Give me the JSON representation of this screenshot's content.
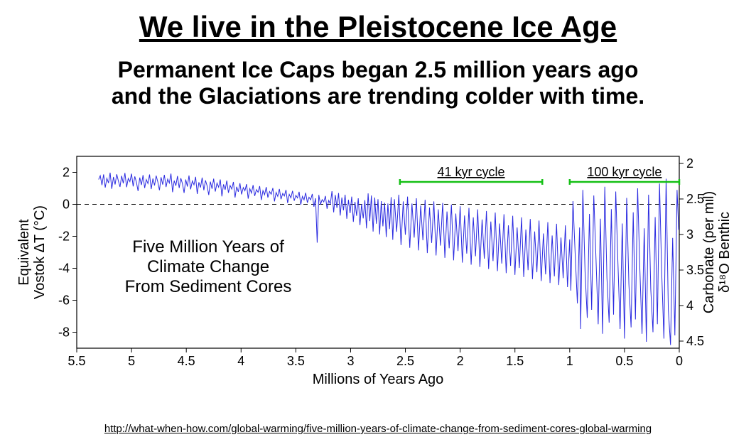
{
  "title": {
    "text": "We live in the Pleistocene Ice Age",
    "fontsize": 42,
    "color": "#000000",
    "underline": true,
    "weight": "bold"
  },
  "subtitle": {
    "line1": "Permanent Ice Caps began 2.5 million years ago",
    "line2": "and the Glaciations are trending colder with time.",
    "fontsize": 32,
    "color": "#000000",
    "weight": "bold"
  },
  "chart": {
    "type": "line",
    "line_color": "#2a2ae0",
    "line_width": 1.0,
    "background_color": "#ffffff",
    "axis_color": "#000000",
    "zero_line": {
      "style": "dashed",
      "color": "#000000",
      "y": 0
    },
    "x": {
      "label": "Millions of Years Ago",
      "label_fontsize": 20,
      "min": 0,
      "max": 5.5,
      "reversed": true,
      "ticks": [
        5.5,
        5,
        4.5,
        4,
        3.5,
        3,
        2.5,
        2,
        1.5,
        1,
        0.5,
        0
      ],
      "tick_labels": [
        "5.5",
        "5",
        "4.5",
        "4",
        "3.5",
        "3",
        "2.5",
        "2",
        "1.5",
        "1",
        "0.5",
        "0"
      ],
      "tick_fontsize": 18
    },
    "y_left": {
      "label_line1": "Equivalent",
      "label_line2": "Vostok ΔT (°C)",
      "label_fontsize": 20,
      "min": -9,
      "max": 3,
      "ticks": [
        -8,
        -6,
        -4,
        -2,
        0,
        2
      ],
      "tick_labels": [
        "-8",
        "-6",
        "-4",
        "-2",
        "0",
        "2"
      ],
      "tick_fontsize": 18
    },
    "y_right": {
      "label_line1": "δ¹⁸O Benthic",
      "label_line2": "Carbonate (per mil)",
      "label_fontsize": 20,
      "min": 4.6,
      "max": 1.9,
      "inverted": true,
      "ticks": [
        2,
        2.5,
        3,
        3.5,
        4,
        4.5
      ],
      "tick_labels": [
        "2",
        "2.5",
        "3",
        "3.5",
        "4",
        "4.5"
      ],
      "tick_fontsize": 18
    },
    "annotations": {
      "text_block": {
        "line1": "Five Million Years of",
        "line2": "Climate Change",
        "line3": "From Sediment Cores",
        "fontsize": 24,
        "color": "#000000",
        "x_center_mya": 4.3,
        "y_top_degC": -3.0
      },
      "cycle_41": {
        "label": "41 kyr cycle",
        "fontsize": 18,
        "color": "#000000",
        "bar_color": "#15c015",
        "bar_width": 2.5,
        "x_start_mya": 2.55,
        "x_end_mya": 1.25,
        "y_degC": 1.4
      },
      "cycle_100": {
        "label": "100 kyr cycle",
        "fontsize": 18,
        "color": "#000000",
        "bar_color": "#15c015",
        "bar_width": 2.5,
        "x_start_mya": 1.0,
        "x_end_mya": 0.0,
        "y_degC": 1.4
      }
    },
    "series": [
      [
        5.3,
        1.55
      ],
      [
        5.285,
        1.79
      ],
      [
        5.27,
        1.2
      ],
      [
        5.255,
        1.87
      ],
      [
        5.24,
        1.05
      ],
      [
        5.225,
        1.62
      ],
      [
        5.21,
        1.33
      ],
      [
        5.195,
        1.98
      ],
      [
        5.18,
        0.97
      ],
      [
        5.165,
        1.71
      ],
      [
        5.15,
        1.24
      ],
      [
        5.135,
        1.88
      ],
      [
        5.12,
        1.46
      ],
      [
        5.105,
        1.09
      ],
      [
        5.09,
        1.78
      ],
      [
        5.075,
        1.31
      ],
      [
        5.06,
        1.96
      ],
      [
        5.045,
        1.07
      ],
      [
        5.03,
        1.62
      ],
      [
        5.015,
        1.42
      ],
      [
        5.0,
        1.91
      ],
      [
        4.985,
        1.12
      ],
      [
        4.97,
        1.74
      ],
      [
        4.955,
        1.38
      ],
      [
        4.94,
        0.83
      ],
      [
        4.925,
        1.67
      ],
      [
        4.91,
        1.21
      ],
      [
        4.895,
        1.82
      ],
      [
        4.88,
        1.02
      ],
      [
        4.865,
        1.55
      ],
      [
        4.85,
        1.3
      ],
      [
        4.835,
        1.86
      ],
      [
        4.82,
        0.95
      ],
      [
        4.805,
        1.61
      ],
      [
        4.79,
        1.18
      ],
      [
        4.775,
        1.79
      ],
      [
        4.76,
        1.4
      ],
      [
        4.745,
        0.88
      ],
      [
        4.73,
        1.69
      ],
      [
        4.715,
        1.23
      ],
      [
        4.7,
        1.84
      ],
      [
        4.685,
        1.08
      ],
      [
        4.67,
        1.58
      ],
      [
        4.655,
        1.33
      ],
      [
        4.64,
        1.92
      ],
      [
        4.625,
        0.76
      ],
      [
        4.61,
        1.48
      ],
      [
        4.595,
        1.16
      ],
      [
        4.58,
        1.77
      ],
      [
        4.565,
        1.02
      ],
      [
        4.55,
        1.63
      ],
      [
        4.535,
        1.29
      ],
      [
        4.52,
        0.71
      ],
      [
        4.505,
        1.55
      ],
      [
        4.49,
        1.11
      ],
      [
        4.475,
        1.8
      ],
      [
        4.46,
        0.94
      ],
      [
        4.445,
        1.46
      ],
      [
        4.43,
        1.22
      ],
      [
        4.415,
        1.72
      ],
      [
        4.4,
        0.65
      ],
      [
        4.385,
        1.38
      ],
      [
        4.37,
        1.05
      ],
      [
        4.355,
        1.67
      ],
      [
        4.34,
        0.88
      ],
      [
        4.325,
        1.5
      ],
      [
        4.31,
        1.15
      ],
      [
        4.295,
        0.58
      ],
      [
        4.28,
        1.42
      ],
      [
        4.265,
        0.97
      ],
      [
        4.25,
        1.6
      ],
      [
        4.235,
        0.8
      ],
      [
        4.22,
        1.33
      ],
      [
        4.205,
        1.07
      ],
      [
        4.19,
        1.55
      ],
      [
        4.175,
        0.5
      ],
      [
        4.16,
        1.25
      ],
      [
        4.145,
        0.91
      ],
      [
        4.13,
        1.48
      ],
      [
        4.115,
        0.72
      ],
      [
        4.1,
        1.18
      ],
      [
        4.085,
        0.95
      ],
      [
        4.07,
        1.4
      ],
      [
        4.055,
        0.42
      ],
      [
        4.04,
        1.1
      ],
      [
        4.025,
        0.78
      ],
      [
        4.01,
        1.32
      ],
      [
        3.995,
        0.62
      ],
      [
        3.98,
        1.05
      ],
      [
        3.965,
        0.85
      ],
      [
        3.95,
        1.26
      ],
      [
        3.935,
        0.35
      ],
      [
        3.92,
        0.98
      ],
      [
        3.905,
        0.7
      ],
      [
        3.89,
        1.2
      ],
      [
        3.875,
        0.52
      ],
      [
        3.86,
        0.92
      ],
      [
        3.845,
        0.75
      ],
      [
        3.83,
        1.14
      ],
      [
        3.815,
        0.27
      ],
      [
        3.8,
        0.86
      ],
      [
        3.785,
        0.6
      ],
      [
        3.77,
        1.08
      ],
      [
        3.755,
        0.42
      ],
      [
        3.74,
        0.8
      ],
      [
        3.725,
        0.63
      ],
      [
        3.71,
        1.02
      ],
      [
        3.695,
        0.18
      ],
      [
        3.68,
        0.74
      ],
      [
        3.665,
        0.5
      ],
      [
        3.65,
        0.96
      ],
      [
        3.635,
        0.32
      ],
      [
        3.62,
        0.68
      ],
      [
        3.605,
        0.52
      ],
      [
        3.59,
        0.9
      ],
      [
        3.575,
        0.08
      ],
      [
        3.56,
        0.62
      ],
      [
        3.545,
        0.4
      ],
      [
        3.53,
        0.84
      ],
      [
        3.515,
        0.22
      ],
      [
        3.5,
        0.56
      ],
      [
        3.485,
        0.4
      ],
      [
        3.47,
        0.78
      ],
      [
        3.455,
        -0.03
      ],
      [
        3.44,
        0.5
      ],
      [
        3.425,
        0.28
      ],
      [
        3.41,
        0.72
      ],
      [
        3.395,
        0.1
      ],
      [
        3.38,
        0.44
      ],
      [
        3.365,
        0.28
      ],
      [
        3.35,
        0.65
      ],
      [
        3.335,
        -0.15
      ],
      [
        3.32,
        0.38
      ],
      [
        3.305,
        -2.4
      ],
      [
        3.29,
        0.58
      ],
      [
        3.275,
        -0.02
      ],
      [
        3.26,
        0.3
      ],
      [
        3.245,
        0.15
      ],
      [
        3.23,
        0.52
      ],
      [
        3.215,
        -0.28
      ],
      [
        3.2,
        0.24
      ],
      [
        3.185,
        0.03
      ],
      [
        3.17,
        0.82
      ],
      [
        3.155,
        -0.5
      ],
      [
        3.14,
        0.58
      ],
      [
        3.125,
        -0.22
      ],
      [
        3.11,
        0.7
      ],
      [
        3.095,
        -0.7
      ],
      [
        3.08,
        0.42
      ],
      [
        3.065,
        -0.38
      ],
      [
        3.05,
        0.6
      ],
      [
        3.035,
        -0.9
      ],
      [
        3.02,
        0.28
      ],
      [
        3.005,
        -0.55
      ],
      [
        2.99,
        0.48
      ],
      [
        2.975,
        -1.1
      ],
      [
        2.96,
        0.15
      ],
      [
        2.945,
        -0.72
      ],
      [
        2.93,
        0.38
      ],
      [
        2.915,
        -1.3
      ],
      [
        2.9,
        0.02
      ],
      [
        2.885,
        -0.88
      ],
      [
        2.87,
        0.26
      ],
      [
        2.855,
        -1.5
      ],
      [
        2.84,
        0.68
      ],
      [
        2.825,
        -1.05
      ],
      [
        2.81,
        0.55
      ],
      [
        2.795,
        -1.7
      ],
      [
        2.78,
        0.42
      ],
      [
        2.765,
        -1.22
      ],
      [
        2.75,
        0.32
      ],
      [
        2.735,
        -1.88
      ],
      [
        2.72,
        0.2
      ],
      [
        2.705,
        -1.38
      ],
      [
        2.69,
        0.1
      ],
      [
        2.675,
        -2.05
      ],
      [
        2.66,
        0.05
      ],
      [
        2.645,
        -1.55
      ],
      [
        2.63,
        0.45
      ],
      [
        2.615,
        -2.22
      ],
      [
        2.6,
        0.32
      ],
      [
        2.58,
        -1.72
      ],
      [
        2.56,
        0.6
      ],
      [
        2.54,
        -2.55
      ],
      [
        2.52,
        0.18
      ],
      [
        2.5,
        -1.9
      ],
      [
        2.48,
        0.48
      ],
      [
        2.46,
        -2.72
      ],
      [
        2.44,
        0.05
      ],
      [
        2.42,
        -2.08
      ],
      [
        2.4,
        0.38
      ],
      [
        2.38,
        -2.88
      ],
      [
        2.36,
        -0.08
      ],
      [
        2.34,
        -2.25
      ],
      [
        2.32,
        0.28
      ],
      [
        2.3,
        -3.05
      ],
      [
        2.28,
        -0.2
      ],
      [
        2.26,
        -2.42
      ],
      [
        2.24,
        0.18
      ],
      [
        2.22,
        -3.2
      ],
      [
        2.2,
        -0.32
      ],
      [
        2.18,
        -2.58
      ],
      [
        2.16,
        0.08
      ],
      [
        2.14,
        -3.35
      ],
      [
        2.12,
        -0.45
      ],
      [
        2.1,
        -2.75
      ],
      [
        2.08,
        -0.02
      ],
      [
        2.06,
        -3.5
      ],
      [
        2.04,
        -0.58
      ],
      [
        2.02,
        -2.92
      ],
      [
        2.0,
        -0.12
      ],
      [
        1.98,
        -3.65
      ],
      [
        1.96,
        -0.7
      ],
      [
        1.94,
        -3.08
      ],
      [
        1.92,
        -0.22
      ],
      [
        1.9,
        -3.78
      ],
      [
        1.88,
        -0.82
      ],
      [
        1.86,
        -3.25
      ],
      [
        1.84,
        -0.32
      ],
      [
        1.82,
        -3.92
      ],
      [
        1.8,
        -0.95
      ],
      [
        1.78,
        -3.4
      ],
      [
        1.76,
        -0.42
      ],
      [
        1.74,
        -4.05
      ],
      [
        1.72,
        -1.08
      ],
      [
        1.7,
        -3.55
      ],
      [
        1.68,
        -0.52
      ],
      [
        1.66,
        -4.18
      ],
      [
        1.64,
        -1.2
      ],
      [
        1.62,
        -3.7
      ],
      [
        1.6,
        -0.62
      ],
      [
        1.58,
        -4.3
      ],
      [
        1.56,
        -1.32
      ],
      [
        1.54,
        -3.85
      ],
      [
        1.52,
        -0.72
      ],
      [
        1.5,
        -4.42
      ],
      [
        1.48,
        -1.45
      ],
      [
        1.46,
        -3.98
      ],
      [
        1.44,
        -0.82
      ],
      [
        1.42,
        -4.55
      ],
      [
        1.4,
        -1.58
      ],
      [
        1.38,
        -4.12
      ],
      [
        1.36,
        -0.92
      ],
      [
        1.34,
        -4.68
      ],
      [
        1.32,
        -1.7
      ],
      [
        1.3,
        -4.25
      ],
      [
        1.28,
        -1.02
      ],
      [
        1.26,
        -4.8
      ],
      [
        1.24,
        -1.82
      ],
      [
        1.22,
        -4.38
      ],
      [
        1.2,
        -1.12
      ],
      [
        1.18,
        -4.92
      ],
      [
        1.16,
        -1.95
      ],
      [
        1.14,
        -4.5
      ],
      [
        1.12,
        -1.22
      ],
      [
        1.1,
        -5.05
      ],
      [
        1.08,
        -2.08
      ],
      [
        1.06,
        -4.62
      ],
      [
        1.04,
        -1.32
      ],
      [
        1.02,
        -5.18
      ],
      [
        1.0,
        -2.2
      ],
      [
        0.99,
        -5.4
      ],
      [
        0.97,
        0.2
      ],
      [
        0.95,
        -3.1
      ],
      [
        0.93,
        -6.2
      ],
      [
        0.91,
        -1.45
      ],
      [
        0.9,
        -7.8
      ],
      [
        0.88,
        0.9
      ],
      [
        0.86,
        -4.2
      ],
      [
        0.84,
        -7.1
      ],
      [
        0.82,
        -0.6
      ],
      [
        0.8,
        -6.6
      ],
      [
        0.78,
        0.55
      ],
      [
        0.76,
        -3.4
      ],
      [
        0.74,
        -7.5
      ],
      [
        0.72,
        -0.9
      ],
      [
        0.7,
        -8.1
      ],
      [
        0.68,
        1.1
      ],
      [
        0.66,
        -4.6
      ],
      [
        0.64,
        -7.4
      ],
      [
        0.62,
        -0.3
      ],
      [
        0.6,
        -6.9
      ],
      [
        0.58,
        0.8
      ],
      [
        0.56,
        -3.7
      ],
      [
        0.54,
        -7.8
      ],
      [
        0.52,
        -1.2
      ],
      [
        0.5,
        -8.4
      ],
      [
        0.48,
        0.4
      ],
      [
        0.46,
        -5.0
      ],
      [
        0.44,
        -7.7
      ],
      [
        0.42,
        -0.5
      ],
      [
        0.4,
        -7.2
      ],
      [
        0.38,
        1.0
      ],
      [
        0.36,
        -4.0
      ],
      [
        0.34,
        -8.1
      ],
      [
        0.32,
        -1.5
      ],
      [
        0.3,
        -8.6
      ],
      [
        0.28,
        0.6
      ],
      [
        0.26,
        -5.3
      ],
      [
        0.24,
        -8.0
      ],
      [
        0.22,
        -0.8
      ],
      [
        0.2,
        -7.5
      ],
      [
        0.18,
        1.3
      ],
      [
        0.16,
        -4.3
      ],
      [
        0.14,
        -8.4
      ],
      [
        0.12,
        1.6
      ],
      [
        0.1,
        -6.6
      ],
      [
        0.08,
        -8.8
      ],
      [
        0.06,
        -2.1
      ],
      [
        0.04,
        -8.2
      ],
      [
        0.02,
        0.9
      ],
      [
        0.005,
        -1.6
      ]
    ]
  },
  "source": {
    "text": "http://what-when-how.com/global-warming/five-million-years-of-climate-change-from-sediment-cores-global-warming",
    "fontsize": 15,
    "underline": true
  }
}
